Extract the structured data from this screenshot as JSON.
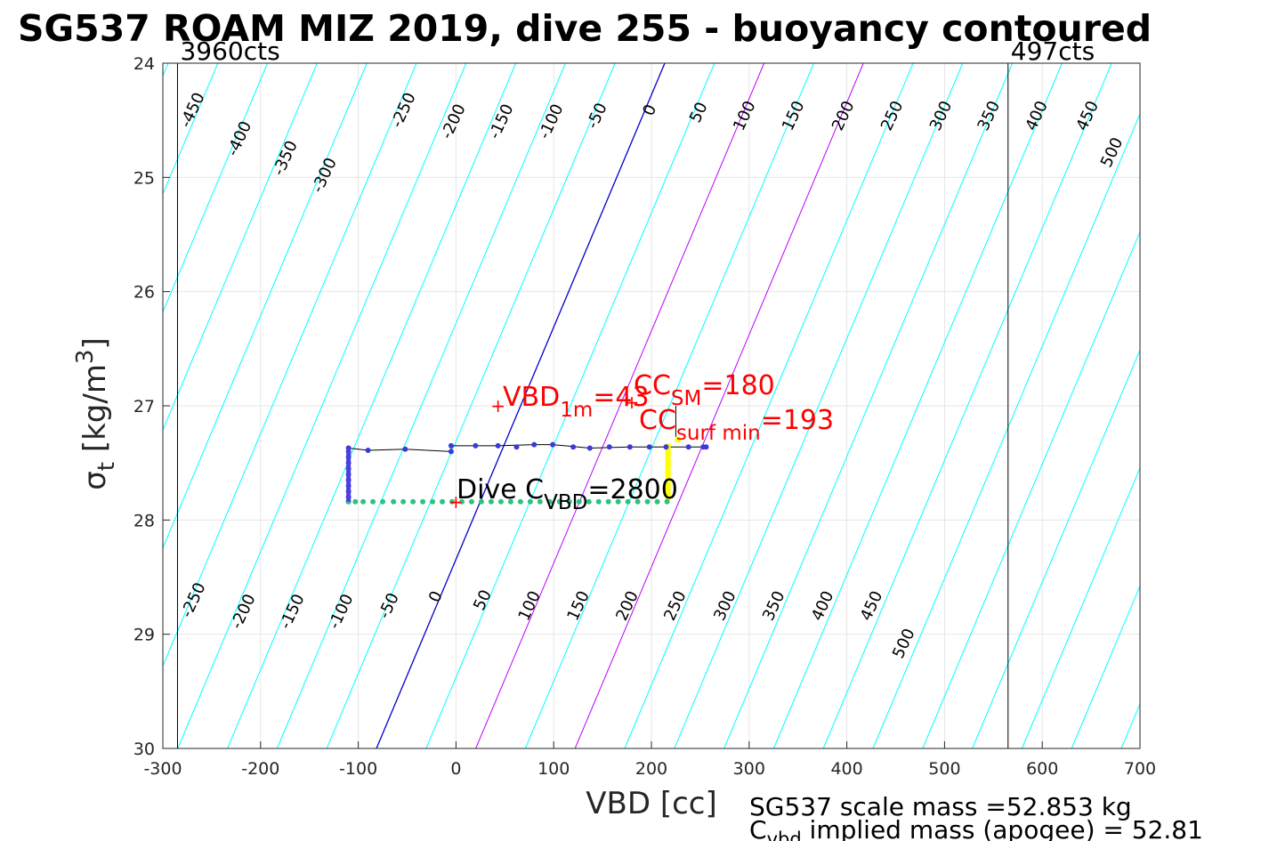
{
  "chart_data": {
    "type": "line",
    "title": "SG537 ROAM MIZ 2019, dive 255 - buoyancy contoured",
    "xlabel": "VBD [cc]",
    "ylabel": {
      "main": "σ",
      "sub": "t",
      "unit": " [kg/m",
      "sup": "3",
      "close": "]"
    },
    "xlim": [
      -300,
      700
    ],
    "ylim": [
      24,
      30
    ],
    "y_reversed": true,
    "grid": true,
    "xticks": [
      -300,
      -200,
      -100,
      0,
      100,
      200,
      300,
      400,
      500,
      600,
      700
    ],
    "yticks": [
      24,
      25,
      26,
      27,
      28,
      29,
      30
    ],
    "xtick_labels": [
      "-300",
      "-200",
      "-100",
      "0",
      "100",
      "200",
      "300",
      "400",
      "500",
      "600",
      "700"
    ],
    "ytick_labels": [
      "24",
      "25",
      "26",
      "27",
      "28",
      "29",
      "30"
    ],
    "vbd_limits": [
      {
        "x": -285,
        "label": "3960cts"
      },
      {
        "x": 565,
        "label": "497cts"
      }
    ],
    "contours": {
      "top": [
        {
          "v": -450,
          "x": -265,
          "y": 24.43,
          "color": "cyan"
        },
        {
          "v": -400,
          "x": -217,
          "y": 24.68,
          "color": "cyan"
        },
        {
          "v": -350,
          "x": -170,
          "y": 24.85,
          "color": "cyan"
        },
        {
          "v": -300,
          "x": -130,
          "y": 25.0,
          "color": "cyan"
        },
        {
          "v": -250,
          "x": -49,
          "y": 24.43,
          "color": "cyan"
        },
        {
          "v": -200,
          "x": 2,
          "y": 24.53,
          "color": "cyan"
        },
        {
          "v": -150,
          "x": 51,
          "y": 24.53,
          "color": "cyan"
        },
        {
          "v": -100,
          "x": 102,
          "y": 24.53,
          "color": "cyan"
        },
        {
          "v": -50,
          "x": 149,
          "y": 24.48,
          "color": "cyan"
        },
        {
          "v": 0,
          "x": 203,
          "y": 24.43,
          "color": "blue"
        },
        {
          "v": 50,
          "x": 253,
          "y": 24.45,
          "color": "cyan"
        },
        {
          "v": 100,
          "x": 300,
          "y": 24.48,
          "color": "magenta"
        },
        {
          "v": 150,
          "x": 350,
          "y": 24.48,
          "color": "cyan"
        },
        {
          "v": 200,
          "x": 401,
          "y": 24.48,
          "color": "magenta"
        },
        {
          "v": 250,
          "x": 451,
          "y": 24.48,
          "color": "cyan"
        },
        {
          "v": 300,
          "x": 501,
          "y": 24.48,
          "color": "cyan"
        },
        {
          "v": 350,
          "x": 550,
          "y": 24.48,
          "color": "cyan"
        },
        {
          "v": 400,
          "x": 599,
          "y": 24.48,
          "color": "cyan"
        },
        {
          "v": 450,
          "x": 651,
          "y": 24.48,
          "color": "cyan"
        },
        {
          "v": 500,
          "x": 676,
          "y": 24.8,
          "color": "cyan"
        }
      ],
      "bottom": [
        {
          "v": -250,
          "x": -264,
          "y": 28.72,
          "color": "cyan"
        },
        {
          "v": -200,
          "x": -213,
          "y": 28.82,
          "color": "cyan"
        },
        {
          "v": -150,
          "x": -163,
          "y": 28.82,
          "color": "cyan"
        },
        {
          "v": -100,
          "x": -113,
          "y": 28.82,
          "color": "cyan"
        },
        {
          "v": -50,
          "x": -64,
          "y": 28.77,
          "color": "cyan"
        },
        {
          "v": 0,
          "x": -16,
          "y": 28.69,
          "color": "blue"
        },
        {
          "v": 50,
          "x": 32,
          "y": 28.72,
          "color": "cyan"
        },
        {
          "v": 100,
          "x": 80,
          "y": 28.77,
          "color": "magenta"
        },
        {
          "v": 150,
          "x": 130,
          "y": 28.77,
          "color": "cyan"
        },
        {
          "v": 200,
          "x": 180,
          "y": 28.77,
          "color": "magenta"
        },
        {
          "v": 250,
          "x": 229,
          "y": 28.77,
          "color": "cyan"
        },
        {
          "v": 300,
          "x": 280,
          "y": 28.77,
          "color": "cyan"
        },
        {
          "v": 350,
          "x": 330,
          "y": 28.77,
          "color": "cyan"
        },
        {
          "v": 400,
          "x": 380,
          "y": 28.77,
          "color": "cyan"
        },
        {
          "v": 450,
          "x": 430,
          "y": 28.77,
          "color": "cyan"
        },
        {
          "v": 500,
          "x": 463,
          "y": 29.1,
          "color": "cyan"
        }
      ]
    },
    "series": [
      {
        "color": "#3a3ad8",
        "points": [
          [
            -110,
            27.37
          ],
          [
            -110,
            27.4
          ],
          [
            -110,
            27.45
          ],
          [
            -110,
            27.5
          ],
          [
            -110,
            27.55
          ],
          [
            -110,
            27.6
          ],
          [
            -110,
            27.65
          ],
          [
            -110,
            27.7
          ],
          [
            -110,
            27.75
          ],
          [
            -110,
            27.8
          ],
          [
            -110,
            27.84
          ],
          [
            -90,
            27.39
          ],
          [
            -52,
            27.38
          ],
          [
            -5,
            27.35
          ],
          [
            -5,
            27.4
          ],
          [
            20,
            27.35
          ],
          [
            43,
            27.35
          ],
          [
            62,
            27.36
          ],
          [
            80,
            27.34
          ],
          [
            99,
            27.34
          ],
          [
            120,
            27.36
          ],
          [
            137,
            27.37
          ],
          [
            157,
            27.36
          ],
          [
            178,
            27.36
          ],
          [
            198,
            27.36
          ],
          [
            215,
            27.36
          ],
          [
            238,
            27.36
          ],
          [
            253,
            27.36
          ],
          [
            256,
            27.36
          ]
        ]
      },
      {
        "color": "#2ec27e",
        "points": [
          [
            -110,
            27.84
          ],
          [
            -103,
            27.84
          ],
          [
            -95,
            27.84
          ],
          [
            -85,
            27.84
          ],
          [
            -75,
            27.84
          ],
          [
            -64,
            27.84
          ],
          [
            -54,
            27.84
          ],
          [
            -44,
            27.84
          ],
          [
            -34,
            27.84
          ],
          [
            -24,
            27.84
          ],
          [
            -14,
            27.84
          ],
          [
            -4,
            27.84
          ],
          [
            6,
            27.84
          ],
          [
            16,
            27.84
          ],
          [
            26,
            27.84
          ],
          [
            36,
            27.84
          ],
          [
            46,
            27.84
          ],
          [
            56,
            27.84
          ],
          [
            66,
            27.84
          ],
          [
            76,
            27.84
          ],
          [
            86,
            27.84
          ],
          [
            96,
            27.84
          ],
          [
            106,
            27.84
          ],
          [
            116,
            27.84
          ],
          [
            126,
            27.84
          ],
          [
            136,
            27.84
          ],
          [
            146,
            27.84
          ],
          [
            156,
            27.84
          ],
          [
            166,
            27.84
          ],
          [
            176,
            27.84
          ],
          [
            186,
            27.84
          ],
          [
            196,
            27.84
          ],
          [
            206,
            27.84
          ],
          [
            216,
            27.84
          ]
        ]
      }
    ],
    "trace": [
      [
        -110,
        27.37
      ],
      [
        -90,
        27.39
      ],
      [
        -52,
        27.38
      ],
      [
        -5,
        27.4
      ],
      [
        -5,
        27.35
      ],
      [
        20,
        27.35
      ],
      [
        43,
        27.35
      ],
      [
        80,
        27.34
      ],
      [
        99,
        27.34
      ],
      [
        137,
        27.37
      ],
      [
        178,
        27.36
      ],
      [
        215,
        27.36
      ],
      [
        256,
        27.36
      ]
    ],
    "yellow_segments": [
      [
        [
          217,
          27.33
        ],
        [
          217,
          27.82
        ]
      ],
      [
        [
          227,
          27.27
        ],
        [
          227,
          27.32
        ]
      ]
    ],
    "annotations": [
      {
        "text": "+VBD",
        "sub": "1m",
        "rest": "=43",
        "x": 43,
        "y": 27.0,
        "color": "red"
      },
      {
        "text": "CC",
        "sub": "SM",
        "rest": "=180",
        "x": 180,
        "y": 26.97,
        "color": "red"
      },
      {
        "text": "CC",
        "sub": "surf min",
        "rest": "=193",
        "x": 193,
        "y": 27.15,
        "color": "red"
      },
      {
        "text": "Dive C",
        "sub": "VBD",
        "rest": "=2800",
        "x": 0,
        "y": 27.84,
        "color": "black"
      }
    ],
    "footer": [
      {
        "text": "SG537 scale mass =52.853 kg"
      },
      {
        "text": "C",
        "sub": "vbd",
        "rest": " implied mass (apogee) = 52.81"
      }
    ]
  },
  "colors": {
    "cyan": "#00ffff",
    "blue": "#0000cc",
    "magenta": "#bf00ff",
    "red": "#ff0000",
    "yellow": "#ffff00",
    "grid": "#e6e6e6"
  }
}
